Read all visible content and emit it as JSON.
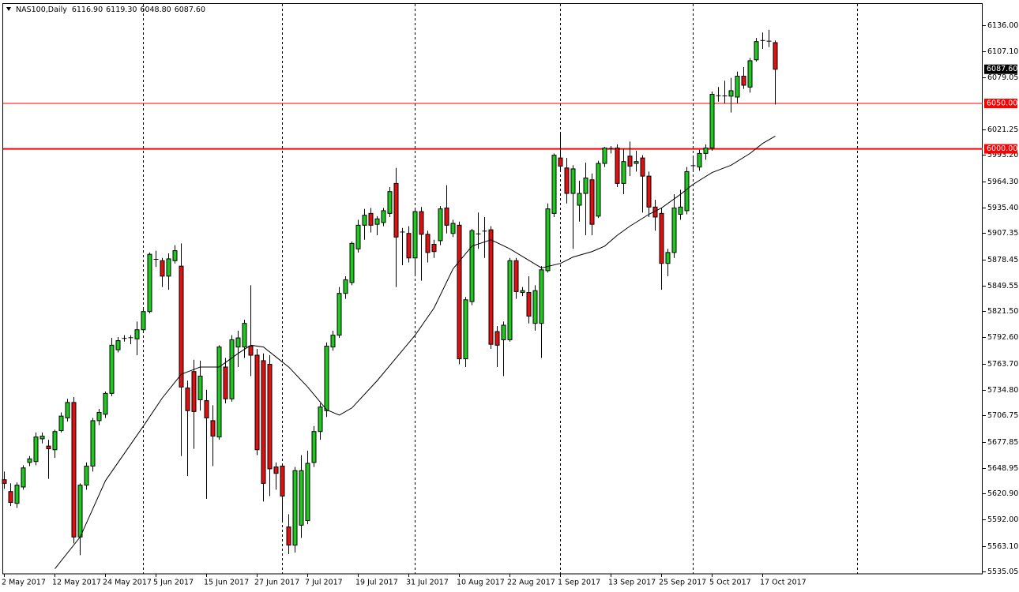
{
  "chart_data": {
    "type": "candlestick",
    "title": "NAS100,Daily",
    "header_values": [
      {
        "value": 6116.9,
        "label": "6116.90"
      },
      {
        "value": 6119.3,
        "label": "6119.30"
      },
      {
        "value": 6048.8,
        "label": "6048.80"
      },
      {
        "value": 6087.6,
        "label": "6087.60"
      }
    ],
    "categories": [
      "2 May 2017",
      null,
      null,
      null,
      null,
      null,
      null,
      null,
      "12 May 2017",
      null,
      null,
      null,
      null,
      null,
      null,
      null,
      "24 May 2017",
      null,
      null,
      null,
      null,
      null,
      null,
      null,
      "5 Jun 2017",
      null,
      null,
      null,
      null,
      null,
      null,
      null,
      "15 Jun 2017",
      null,
      null,
      null,
      null,
      null,
      null,
      null,
      "27 Jun 2017",
      null,
      null,
      null,
      null,
      null,
      null,
      null,
      "7 Jul 2017",
      null,
      null,
      null,
      null,
      null,
      null,
      null,
      "19 Jul 2017",
      null,
      null,
      null,
      null,
      null,
      null,
      null,
      "31 Jul 2017",
      null,
      null,
      null,
      null,
      null,
      null,
      null,
      "10 Aug 2017",
      null,
      null,
      null,
      null,
      null,
      null,
      null,
      "22 Aug 2017",
      null,
      null,
      null,
      null,
      null,
      null,
      null,
      "1 Sep 2017",
      null,
      null,
      null,
      null,
      null,
      null,
      null,
      "13 Sep 2017",
      null,
      null,
      null,
      null,
      null,
      null,
      null,
      "25 Sep 2017",
      null,
      null,
      null,
      null,
      null,
      null,
      null,
      "5 Oct 2017",
      null,
      null,
      null,
      null,
      null,
      null,
      null,
      "17 Oct 2017",
      null,
      null
    ],
    "open": [
      5636,
      5623,
      5610,
      5628,
      5655,
      5656,
      5681,
      5673,
      5669,
      5690,
      5704,
      5721,
      5573,
      5630,
      5651,
      5701,
      5708,
      5731,
      5779,
      5791,
      5792,
      5791,
      5801,
      5821,
      5878,
      5877,
      5860,
      5877,
      5871,
      5737,
      5755,
      5724,
      5723,
      5701,
      5683,
      5760,
      5725,
      5782,
      5782,
      5783,
      5773,
      5767,
      5763,
      5650,
      5651,
      5584,
      5564,
      5586,
      5591,
      5655,
      5689,
      5712,
      5782,
      5795,
      5841,
      5853,
      5890,
      5916,
      5929,
      5917,
      5919,
      5929,
      5962,
      5909,
      5907,
      5880,
      5931,
      5906,
      5895,
      5899,
      5935,
      5907,
      5916,
      5769,
      5832,
      5906,
      5910,
      5911,
      5799,
      5790,
      5790,
      5877,
      5842,
      5842,
      5808,
      5808,
      5866,
      5929,
      5990,
      5979,
      5951,
      5938,
      5951,
      5966,
      5926,
      5984,
      6000,
      6001,
      5962,
      5992,
      5984,
      5990,
      5970,
      5936,
      5929,
      5874,
      5886,
      5928,
      5932,
      5981,
      5980,
      5995,
      6001,
      6058,
      6058,
      6058,
      6057,
      6080,
      6068,
      6098,
      6119,
      6118,
      6116.9
    ],
    "high": [
      5645,
      5632,
      5633,
      5652,
      5662,
      5688,
      5688,
      5680,
      5691,
      5710,
      5725,
      5727,
      5632,
      5655,
      5704,
      5714,
      5733,
      5792,
      5793,
      5795,
      5795,
      5810,
      5825,
      5886,
      5888,
      5880,
      5885,
      5894,
      5896,
      5745,
      5768,
      5767,
      5735,
      5718,
      5784,
      5770,
      5795,
      5800,
      5812,
      5850,
      5780,
      5775,
      5773,
      5655,
      5654,
      5598,
      5650,
      5663,
      5668,
      5695,
      5720,
      5787,
      5800,
      5848,
      5860,
      5898,
      5922,
      5934,
      5935,
      5926,
      5935,
      5958,
      5979,
      5913,
      5915,
      5935,
      5936,
      5910,
      5900,
      5937,
      5960,
      5922,
      5920,
      5837,
      5912,
      5930,
      5925,
      5915,
      5805,
      5810,
      5880,
      5880,
      5848,
      5860,
      5850,
      5871,
      5940,
      5995,
      6018,
      5990,
      5982,
      5965,
      5985,
      5973,
      5987,
      6002,
      6003,
      6005,
      6000,
      6008,
      5998,
      5993,
      5975,
      5944,
      5935,
      5890,
      5950,
      5955,
      5980,
      5990,
      5999,
      6005,
      6063,
      6068,
      6075,
      6078,
      6085,
      6090,
      6100,
      6122,
      6128,
      6131,
      6119.3
    ],
    "low": [
      5626,
      5607,
      5605,
      5625,
      5651,
      5652,
      5676,
      5637,
      5660,
      5688,
      5700,
      5566,
      5553,
      5625,
      5645,
      5696,
      5704,
      5728,
      5776,
      5788,
      5785,
      5773,
      5798,
      5819,
      5870,
      5848,
      5845,
      5874,
      5662,
      5640,
      5670,
      5712,
      5615,
      5651,
      5680,
      5720,
      5722,
      5760,
      5770,
      5750,
      5663,
      5612,
      5618,
      5625,
      5591,
      5554,
      5556,
      5572,
      5587,
      5650,
      5680,
      5705,
      5778,
      5792,
      5835,
      5850,
      5886,
      5900,
      5908,
      5905,
      5915,
      5925,
      5848,
      5872,
      5875,
      5860,
      5855,
      5875,
      5880,
      5894,
      5907,
      5903,
      5763,
      5760,
      5828,
      5890,
      5880,
      5780,
      5760,
      5750,
      5788,
      5835,
      5838,
      5808,
      5800,
      5770,
      5864,
      5925,
      5976,
      5940,
      5890,
      5920,
      5905,
      5905,
      5924,
      5980,
      5995,
      5958,
      5950,
      5970,
      5975,
      5930,
      5925,
      5910,
      5845,
      5860,
      5880,
      5922,
      5928,
      5975,
      5976,
      5988,
      5998,
      6052,
      6050,
      6040,
      6050,
      6066,
      6062,
      6096,
      6110,
      6112,
      6048.8
    ],
    "close": [
      5632,
      5611,
      5630,
      5649,
      5659,
      5683,
      5684,
      5670,
      5689,
      5706,
      5721,
      5573,
      5630,
      5651,
      5701,
      5710,
      5731,
      5784,
      5789,
      5792,
      5792.5,
      5801,
      5821,
      5884,
      5879,
      5860,
      5879,
      5888,
      5738,
      5712,
      5711,
      5750,
      5704,
      5684,
      5782,
      5725,
      5790,
      5792,
      5808,
      5773,
      5669,
      5632,
      5648,
      5643,
      5618,
      5564,
      5646,
      5646,
      5654,
      5689,
      5716,
      5783,
      5795,
      5841,
      5856,
      5896,
      5916,
      5927,
      5916,
      5923,
      5932,
      5953,
      5903,
      5908,
      5880,
      5931,
      5906,
      5886,
      5887,
      5934,
      5916,
      5918,
      5769,
      5834,
      5910,
      5907,
      5909,
      5785,
      5784,
      5806,
      5877,
      5843,
      5844,
      5816,
      5844,
      5867,
      5934,
      5993,
      5981,
      5951,
      5978,
      5951,
      5968,
      5917,
      5984,
      6001,
      6001,
      5962,
      5986,
      5981,
      5986,
      5970,
      5936,
      5925,
      5874,
      5886,
      5935,
      5936,
      5975,
      5982,
      5995,
      6001,
      6060,
      6059,
      6058.5,
      6064,
      6080,
      6070,
      6097,
      6118,
      6119.5,
      6119,
      6087.6
    ],
    "up_color": "#1ec81e",
    "down_color": "#e01010",
    "moving_average": {
      "color": "#000000",
      "x": [
        8,
        12,
        16,
        22,
        25,
        28,
        31,
        34,
        37,
        39,
        41,
        43,
        45,
        48,
        51,
        53,
        55,
        59,
        62,
        65,
        68,
        71,
        74,
        77,
        80,
        85,
        88,
        90,
        93,
        95,
        97,
        99,
        102,
        104,
        107,
        109,
        112,
        115,
        118,
        120,
        122
      ],
      "values": [
        5538,
        5573,
        5635,
        5695,
        5726,
        5752,
        5760,
        5760,
        5775,
        5784,
        5782,
        5771,
        5760,
        5738,
        5713,
        5707,
        5715,
        5745,
        5770,
        5795,
        5825,
        5868,
        5893,
        5900,
        5890,
        5869,
        5874,
        5881,
        5887,
        5893,
        5905,
        5915,
        5928,
        5935,
        5950,
        5961,
        5974,
        5982,
        5995,
        6006,
        6014
      ]
    },
    "hlines": [
      {
        "value": 6050,
        "label": "6050.00",
        "color": "#ff0000",
        "width": 1
      },
      {
        "value": 6000,
        "label": "6000.00",
        "color": "#ff0000",
        "width": 2
      }
    ],
    "last_price": {
      "value": 6087.6,
      "label": "6087.60"
    },
    "ylim": [
      5532.44,
      6158.58
    ],
    "yticks": [
      {
        "value": 6136,
        "label": "6136.00"
      },
      {
        "value": 6107.1,
        "label": "6107.10"
      },
      {
        "value": 6079.05,
        "label": "6079.05"
      },
      {
        "value": 6021.25,
        "label": "6021.25"
      },
      {
        "value": 5993.2,
        "label": "5993.20"
      },
      {
        "value": 5964.3,
        "label": "5964.30"
      },
      {
        "value": 5935.4,
        "label": "5935.40"
      },
      {
        "value": 5907.35,
        "label": "5907.35"
      },
      {
        "value": 5878.45,
        "label": "5878.45"
      },
      {
        "value": 5849.55,
        "label": "5849.55"
      },
      {
        "value": 5821.5,
        "label": "5821.50"
      },
      {
        "value": 5792.6,
        "label": "5792.60"
      },
      {
        "value": 5763.7,
        "label": "5763.70"
      },
      {
        "value": 5734.8,
        "label": "5734.80"
      },
      {
        "value": 5706.75,
        "label": "5706.75"
      },
      {
        "value": 5677.85,
        "label": "5677.85"
      },
      {
        "value": 5648.95,
        "label": "5648.95"
      },
      {
        "value": 5620.9,
        "label": "5620.90"
      },
      {
        "value": 5592,
        "label": "5592.00"
      },
      {
        "value": 5563.1,
        "label": "5563.10"
      },
      {
        "value": 5535.05,
        "label": "5535.05"
      }
    ]
  }
}
